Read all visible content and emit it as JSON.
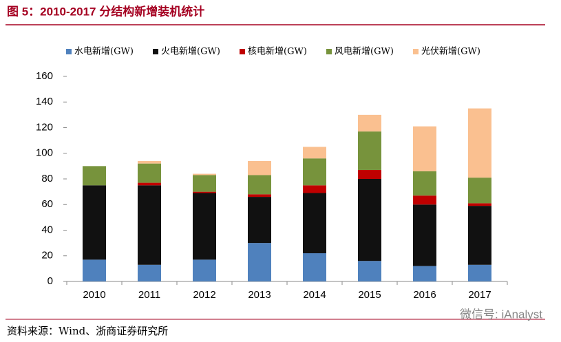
{
  "header": {
    "title": "图 5：2010-2017 分结构新增装机统计"
  },
  "chart_data": {
    "type": "stacked_bar",
    "categories": [
      "2010",
      "2011",
      "2012",
      "2013",
      "2014",
      "2015",
      "2016",
      "2017"
    ],
    "series": [
      {
        "name": "水电新增(GW)",
        "color": "#4f81bd",
        "values": [
          17,
          13,
          17,
          30,
          22,
          16,
          12,
          13
        ]
      },
      {
        "name": "火电新增(GW)",
        "color": "#111111",
        "values": [
          58,
          62,
          52,
          36,
          47,
          64,
          48,
          46
        ]
      },
      {
        "name": "核电新增(GW)",
        "color": "#c00000",
        "values": [
          0,
          2,
          1,
          2,
          6,
          7,
          7,
          2
        ]
      },
      {
        "name": "风电新增(GW)",
        "color": "#77933c",
        "values": [
          15,
          15,
          13,
          15,
          21,
          30,
          19,
          20
        ]
      },
      {
        "name": "光伏新增(GW)",
        "color": "#fac090",
        "values": [
          0,
          2,
          1,
          11,
          9,
          13,
          35,
          54
        ]
      }
    ],
    "ylim": [
      0,
      160
    ],
    "yticks": [
      0,
      20,
      40,
      60,
      80,
      100,
      120,
      140,
      160
    ],
    "grid": false,
    "legend": "top"
  },
  "footer": {
    "source": "资料来源：Wind、浙商证券研究所",
    "watermark": "微信号: iAnalyst"
  }
}
